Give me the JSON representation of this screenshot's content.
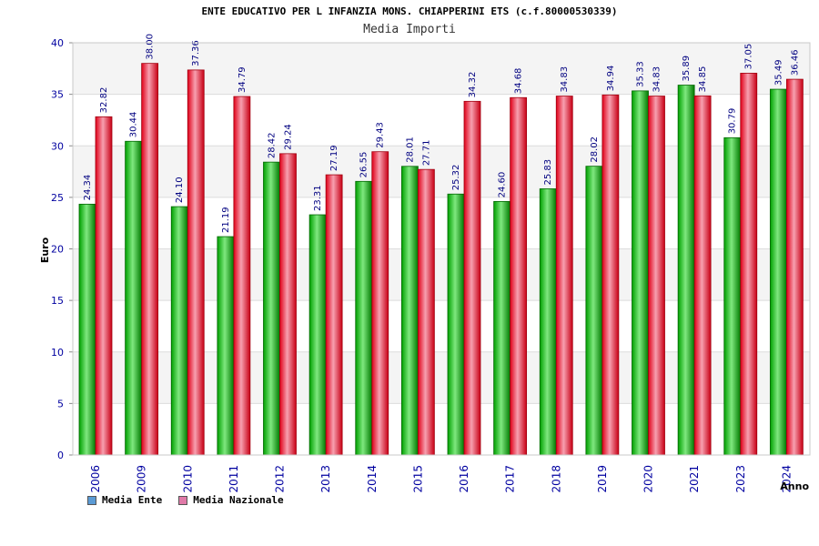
{
  "chart_data": {
    "type": "bar",
    "title": "ENTE EDUCATIVO PER L INFANZIA MONS. CHIAPPERINI ETS (c.f.80000530339)",
    "subtitle": "Media Importi",
    "xlabel": "Anno",
    "ylabel": "Euro",
    "ylim": [
      0,
      40
    ],
    "yticks": [
      0,
      5,
      10,
      15,
      20,
      25,
      30,
      35,
      40
    ],
    "grid": true,
    "legend_position": "bottom-left",
    "categories": [
      "2006",
      "2009",
      "2010",
      "2011",
      "2012",
      "2013",
      "2014",
      "2015",
      "2016",
      "2017",
      "2018",
      "2019",
      "2020",
      "2021",
      "2023",
      "2024"
    ],
    "series": [
      {
        "name": "Media Ente",
        "color": "#00b000",
        "legend_color": "#5b9bd5",
        "values": [
          24.34,
          30.44,
          24.1,
          21.19,
          28.42,
          23.31,
          26.55,
          28.01,
          25.32,
          24.6,
          25.83,
          28.02,
          35.33,
          35.89,
          30.79,
          35.49
        ],
        "labels": [
          "24.34",
          "30.44",
          "24.10",
          "21.19",
          "28.42",
          "23.31",
          "26.55",
          "28.01",
          "25.32",
          "24.60",
          "25.83",
          "28.02",
          "35.33",
          "35.89",
          "30.79",
          "35.49"
        ]
      },
      {
        "name": "Media Nazionale",
        "color": "#e8102a",
        "legend_color": "#e07aa8",
        "values": [
          32.82,
          38.0,
          37.36,
          34.79,
          29.24,
          27.19,
          29.43,
          27.71,
          34.32,
          34.68,
          34.83,
          34.94,
          34.83,
          34.85,
          37.05,
          36.46
        ],
        "labels": [
          "32.82",
          "38.00",
          "37.36",
          "34.79",
          "29.24",
          "27.19",
          "29.43",
          "27.71",
          "34.32",
          "34.68",
          "34.83",
          "34.94",
          "34.83",
          "34.85",
          "37.05",
          "36.46"
        ]
      }
    ]
  }
}
